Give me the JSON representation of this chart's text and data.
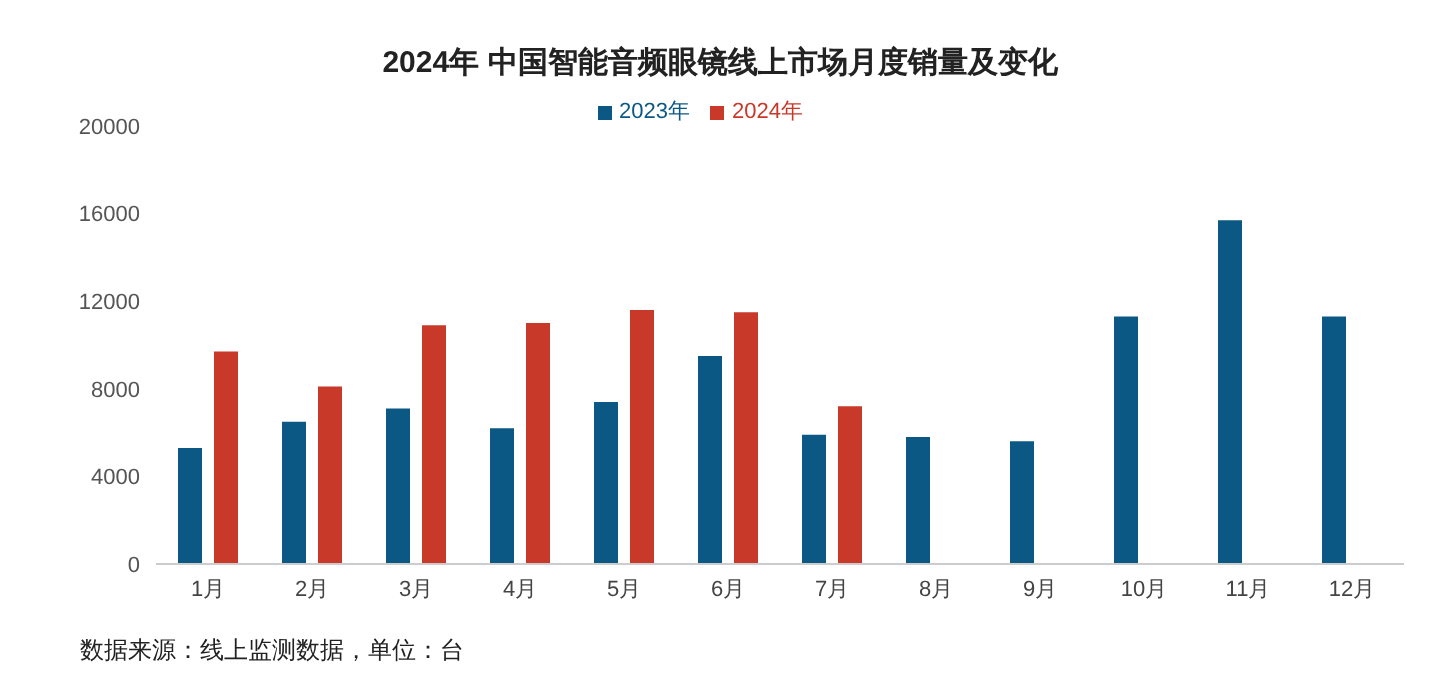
{
  "chart_data": {
    "type": "bar",
    "title": "2024年 中国智能音频眼镜线上市场月度销量及变化",
    "categories": [
      "1月",
      "2月",
      "3月",
      "4月",
      "5月",
      "6月",
      "7月",
      "8月",
      "9月",
      "10月",
      "11月",
      "12月"
    ],
    "series": [
      {
        "name": "2023年",
        "color": "#0b5884",
        "values": [
          5300,
          6500,
          7100,
          6200,
          7400,
          9500,
          5900,
          5800,
          5600,
          11300,
          15700,
          11300
        ]
      },
      {
        "name": "2024年",
        "color": "#c9392a",
        "values": [
          9700,
          8100,
          10900,
          11000,
          11600,
          11500,
          7200,
          null,
          null,
          null,
          null,
          null
        ]
      }
    ],
    "ylim": [
      0,
      20000
    ],
    "yticks": [
      0,
      4000,
      8000,
      12000,
      16000,
      20000
    ],
    "grid": false,
    "legend": "top",
    "annotations": [
      "数据来源：线上监测数据，单位：台"
    ]
  }
}
